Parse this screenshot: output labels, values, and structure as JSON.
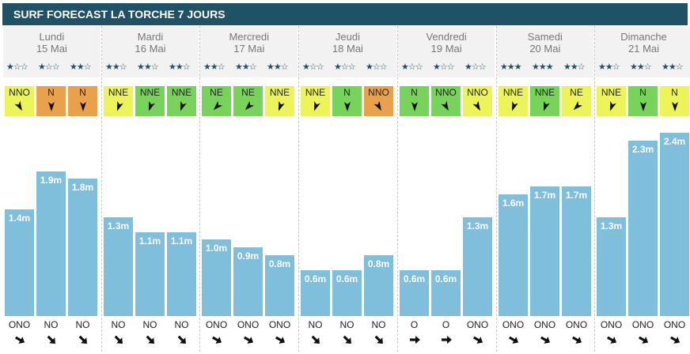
{
  "title": "SURF FORECAST LA TORCHE 7 JOURS",
  "colors": {
    "header": "#1f5167",
    "bar": "#80bfdb",
    "wind_green": "#77d35a",
    "wind_yellow": "#edf45a",
    "wind_orange": "#e9a24b"
  },
  "days": [
    {
      "name": "Lundi",
      "date": "15 Mai"
    },
    {
      "name": "Mardi",
      "date": "16 Mai"
    },
    {
      "name": "Mercredi",
      "date": "17 Mai"
    },
    {
      "name": "Jeudi",
      "date": "18 Mai"
    },
    {
      "name": "Vendredi",
      "date": "19 Mai"
    },
    {
      "name": "Samedi",
      "date": "20 Mai"
    },
    {
      "name": "Dimanche",
      "date": "21 Mai"
    }
  ],
  "chart_data": {
    "type": "bar",
    "title": "SURF FORECAST LA TORCHE 7 JOURS",
    "unit": "m",
    "ylim": [
      0,
      2.6
    ],
    "grid": false,
    "values": [
      1.4,
      1.9,
      1.8,
      1.3,
      1.1,
      1.1,
      1.0,
      0.9,
      0.8,
      0.6,
      0.6,
      0.8,
      0.6,
      0.6,
      1.3,
      1.6,
      1.7,
      1.7,
      1.3,
      2.3,
      2.4
    ],
    "labels": [
      "1.4m",
      "1.9m",
      "1.8m",
      "1.3m",
      "1.1m",
      "1.1m",
      "1.0m",
      "0.9m",
      "0.8m",
      "0.6m",
      "0.6m",
      "0.8m",
      "0.6m",
      "0.6m",
      "1.3m",
      "1.6m",
      "1.7m",
      "1.7m",
      "1.3m",
      "2.3m",
      "2.4m"
    ],
    "stars": [
      1,
      1,
      2,
      2,
      2,
      2,
      2,
      2,
      2,
      1,
      1,
      1,
      1,
      1,
      1,
      3,
      3,
      2,
      2,
      2,
      2
    ],
    "wind": [
      {
        "dir": "NNO",
        "color": "yellow",
        "rot": 150
      },
      {
        "dir": "N",
        "color": "orange",
        "rot": 180
      },
      {
        "dir": "N",
        "color": "orange",
        "rot": 180
      },
      {
        "dir": "NNE",
        "color": "yellow",
        "rot": 200
      },
      {
        "dir": "NNE",
        "color": "green",
        "rot": 200
      },
      {
        "dir": "NNE",
        "color": "green",
        "rot": 200
      },
      {
        "dir": "NE",
        "color": "green",
        "rot": 225
      },
      {
        "dir": "NE",
        "color": "green",
        "rot": 225
      },
      {
        "dir": "NNE",
        "color": "yellow",
        "rot": 200
      },
      {
        "dir": "NNE",
        "color": "yellow",
        "rot": 200
      },
      {
        "dir": "N",
        "color": "green",
        "rot": 180
      },
      {
        "dir": "NNO",
        "color": "orange",
        "rot": 150
      },
      {
        "dir": "N",
        "color": "green",
        "rot": 180
      },
      {
        "dir": "NNO",
        "color": "green",
        "rot": 150
      },
      {
        "dir": "NNO",
        "color": "yellow",
        "rot": 150
      },
      {
        "dir": "NNE",
        "color": "yellow",
        "rot": 200
      },
      {
        "dir": "NNE",
        "color": "green",
        "rot": 200
      },
      {
        "dir": "NE",
        "color": "yellow",
        "rot": 225
      },
      {
        "dir": "NNE",
        "color": "yellow",
        "rot": 200
      },
      {
        "dir": "N",
        "color": "green",
        "rot": 180
      },
      {
        "dir": "N",
        "color": "yellow",
        "rot": 180
      }
    ],
    "swell_dir": [
      "ONO",
      "NO",
      "NO",
      "NO",
      "NO",
      "NO",
      "ONO",
      "ONO",
      "ONO",
      "NO",
      "NO",
      "NO",
      "O",
      "O",
      "ONO",
      "ONO",
      "ONO",
      "ONO",
      "ONO",
      "ONO",
      "ONO"
    ],
    "swell_rot": [
      120,
      135,
      135,
      135,
      135,
      135,
      120,
      120,
      120,
      135,
      135,
      135,
      90,
      90,
      120,
      120,
      120,
      120,
      120,
      120,
      120
    ]
  }
}
